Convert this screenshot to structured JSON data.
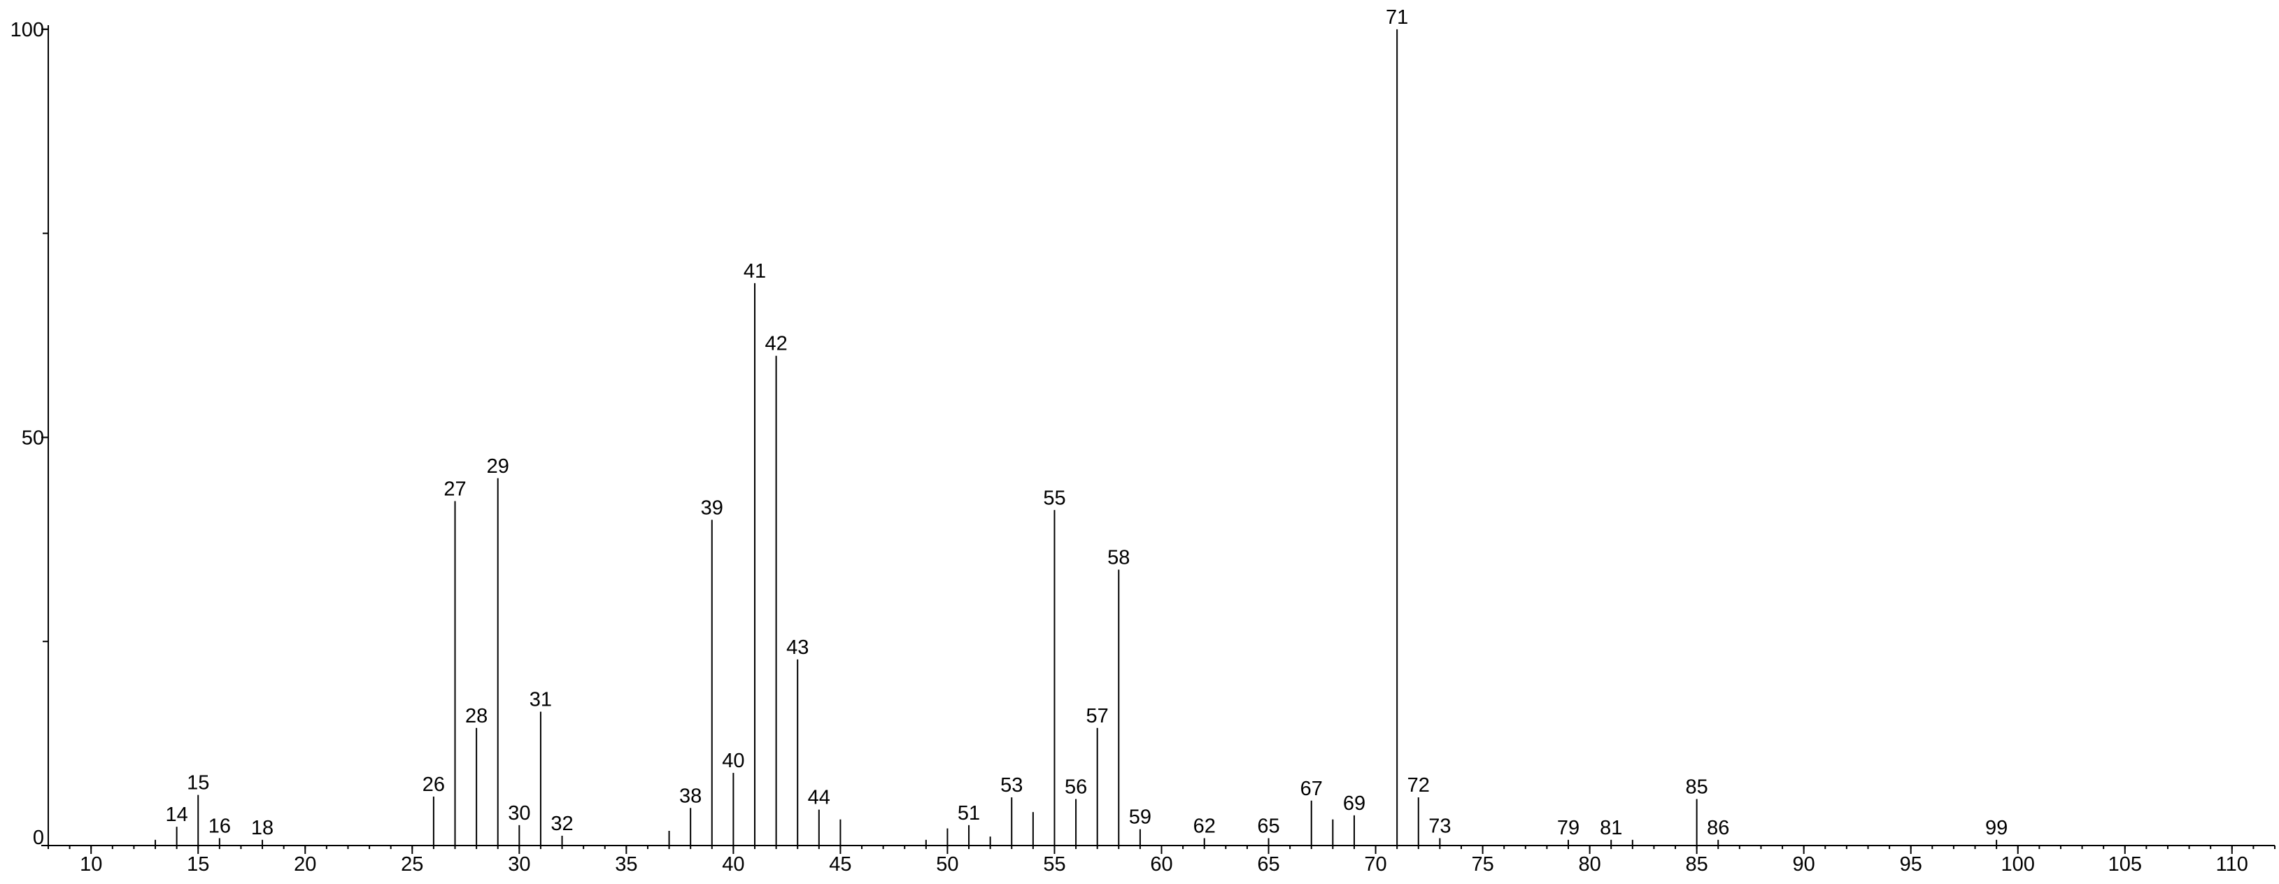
{
  "chart_data": {
    "type": "stem",
    "x": [
      13,
      14,
      15,
      16,
      18,
      26,
      27,
      28,
      29,
      30,
      31,
      32,
      37,
      38,
      39,
      40,
      41,
      42,
      43,
      44,
      45,
      49,
      50,
      51,
      52,
      53,
      54,
      55,
      56,
      57,
      58,
      59,
      62,
      65,
      67,
      68,
      69,
      71,
      72,
      73,
      79,
      81,
      82,
      85,
      86,
      99
    ],
    "values": [
      0.7,
      2.3,
      6.2,
      0.9,
      0.7,
      6,
      42.2,
      14.4,
      45,
      2.5,
      16.4,
      1.2,
      1.8,
      4.6,
      39.9,
      8.9,
      68.9,
      60,
      22.8,
      4.4,
      3.2,
      0.7,
      2.1,
      2.5,
      1.1,
      5.9,
      4.1,
      41.1,
      5.7,
      14.4,
      33.8,
      2,
      0.9,
      0.9,
      5.5,
      3.2,
      3.7,
      100,
      5.9,
      0.9,
      0.7,
      0.7,
      0.7,
      5.7,
      0.7,
      0.7
    ],
    "labeled": [
      false,
      true,
      true,
      true,
      true,
      true,
      true,
      true,
      true,
      true,
      true,
      true,
      false,
      true,
      true,
      true,
      true,
      true,
      true,
      true,
      false,
      false,
      false,
      true,
      false,
      true,
      false,
      true,
      true,
      true,
      true,
      true,
      true,
      true,
      true,
      false,
      true,
      true,
      true,
      true,
      true,
      true,
      false,
      true,
      true,
      true
    ],
    "color": "#000000",
    "xlim": [
      8,
      112
    ],
    "xticks": [
      10,
      15,
      20,
      25,
      30,
      35,
      40,
      45,
      50,
      55,
      60,
      65,
      70,
      75,
      80,
      85,
      90,
      95,
      100,
      105,
      110
    ],
    "xminor_step": 1,
    "ylim": [
      0,
      100.5
    ],
    "yticks": [
      0,
      50,
      100
    ],
    "yminor_step": 25
  }
}
